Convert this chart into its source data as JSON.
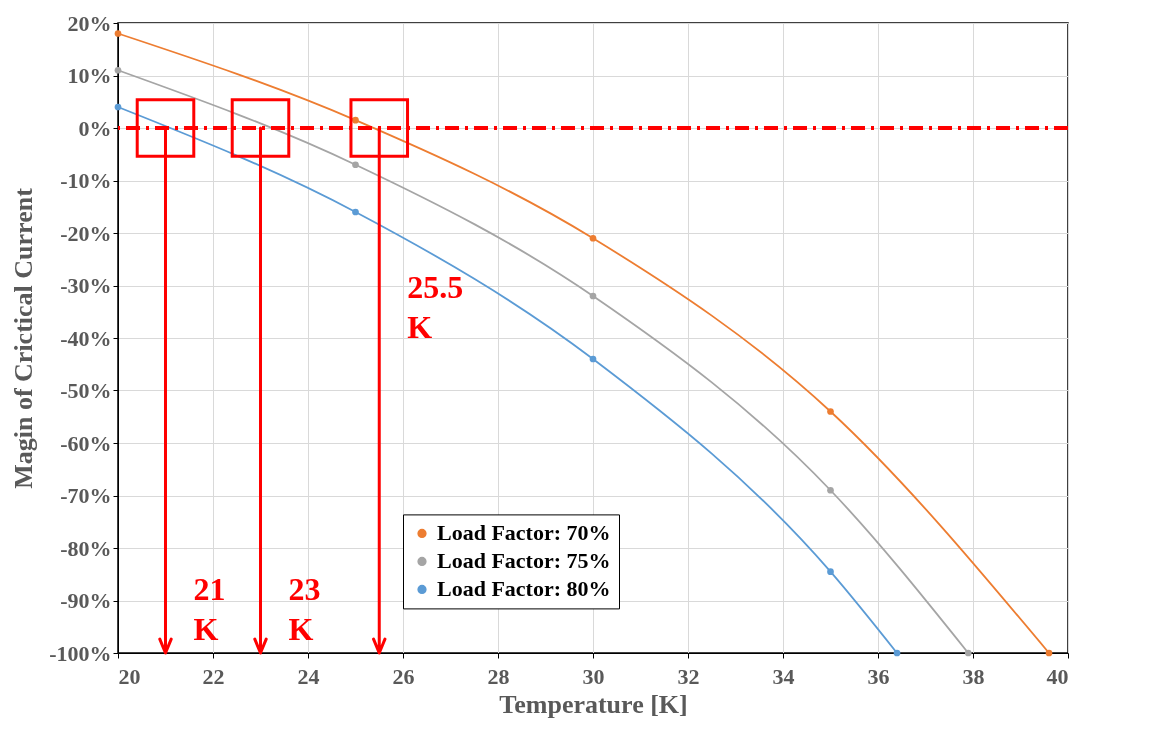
{
  "chart_data": {
    "type": "line",
    "xlabel": "Temperature [K]",
    "ylabel": "Magin of Crictical Current",
    "series": [
      {
        "name": "Load Factor: 70%",
        "color": "#ed7d31",
        "x": [
          20,
          25,
          30,
          35,
          39.6
        ],
        "values": [
          18,
          1.5,
          -21,
          -54,
          -100
        ]
      },
      {
        "name": "Load Factor: 75%",
        "color": "#a5a5a5",
        "x": [
          20,
          25,
          30,
          35,
          37.9
        ],
        "values": [
          11,
          -7,
          -32,
          -69,
          -100
        ]
      },
      {
        "name": "Load Factor: 80%",
        "color": "#5b9bd5",
        "x": [
          20,
          25,
          30,
          35,
          36.4
        ],
        "values": [
          4,
          -16,
          -44,
          -84.5,
          -100
        ]
      }
    ],
    "xlim": [
      20,
      40
    ],
    "xticks": [
      20,
      22,
      24,
      26,
      28,
      30,
      32,
      34,
      36,
      38,
      40
    ],
    "ylim": [
      -100,
      20
    ],
    "yticks": [
      {
        "value": -100,
        "label": "-100%"
      },
      {
        "value": -90,
        "label": "-90%"
      },
      {
        "value": -80,
        "label": "-80%"
      },
      {
        "value": -70,
        "label": "-70%"
      },
      {
        "value": -60,
        "label": "-60%"
      },
      {
        "value": -50,
        "label": "-50%"
      },
      {
        "value": -40,
        "label": "-40%"
      },
      {
        "value": -30,
        "label": "-30%"
      },
      {
        "value": -20,
        "label": "-20%"
      },
      {
        "value": -10,
        "label": "-10%"
      },
      {
        "value": 0,
        "label": "0%"
      },
      {
        "value": 10,
        "label": "10%"
      },
      {
        "value": 20,
        "label": "20%"
      }
    ],
    "ref_lines": [
      {
        "axis": "y",
        "value": 0,
        "color": "#ff0000",
        "line_style": "dashed"
      },
      {
        "axis": "x",
        "value": 21,
        "label": "21 K",
        "color": "#ff0000"
      },
      {
        "axis": "x",
        "value": 23,
        "label": "23 K",
        "color": "#ff0000"
      },
      {
        "axis": "x",
        "value": 25.5,
        "label": "25.5 K",
        "color": "#ff0000"
      }
    ],
    "grid": true,
    "legend": "bottom",
    "marker": "circle",
    "line_style": "solid"
  }
}
